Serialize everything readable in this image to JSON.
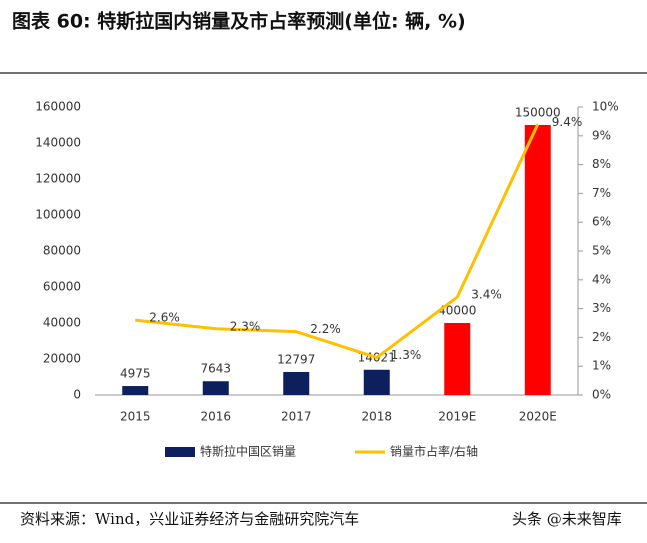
{
  "chart_data": {
    "type": "bar-line",
    "title": "图表 60: 特斯拉国内销量及市占率预测(单位: 辆, %)",
    "source": "资料来源：Wind，兴业证券经济与金融研究院汽车",
    "watermark": "头条 @未来智库",
    "categories": [
      "2015",
      "2016",
      "2017",
      "2018",
      "2019E",
      "2020E"
    ],
    "series": [
      {
        "name": "特斯拉中国区销量",
        "type": "bar",
        "color": "#0d1f5c",
        "colors": [
          "#0d1f5c",
          "#0d1f5c",
          "#0d1f5c",
          "#0d1f5c",
          "#ff0000",
          "#ff0000"
        ],
        "values": [
          4975,
          7643,
          12797,
          14021,
          40000,
          150000
        ]
      },
      {
        "name": "销量市占率/右轴",
        "type": "line",
        "axis": "y2",
        "color": "#ffc000",
        "values": [
          2.6,
          2.3,
          2.2,
          1.3,
          3.4,
          9.4
        ],
        "value_labels": [
          "2.6%",
          "2.3%",
          "2.2%",
          "1.3%",
          "3.4%",
          "9.4%"
        ]
      }
    ],
    "ylim": [
      0,
      160000
    ],
    "yticks": [
      0,
      20000,
      40000,
      60000,
      80000,
      100000,
      120000,
      140000,
      160000
    ],
    "y2lim": [
      0,
      10
    ],
    "y2ticks": [
      {
        "value": 0,
        "label": "0%"
      },
      {
        "value": 1,
        "label": "1%"
      },
      {
        "value": 2,
        "label": "2%"
      },
      {
        "value": 3,
        "label": "3%"
      },
      {
        "value": 4,
        "label": "4%"
      },
      {
        "value": 5,
        "label": "5%"
      },
      {
        "value": 6,
        "label": "6%"
      },
      {
        "value": 7,
        "label": "7%"
      },
      {
        "value": 8,
        "label": "8%"
      },
      {
        "value": 9,
        "label": "9%"
      },
      {
        "value": 10,
        "label": "10%"
      }
    ],
    "legend": "bottom"
  }
}
